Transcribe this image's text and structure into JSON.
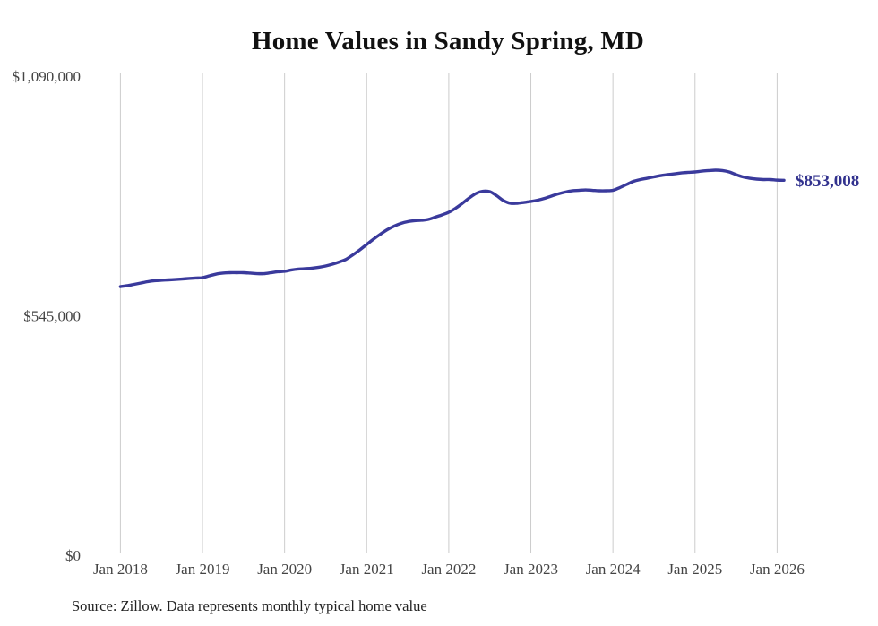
{
  "title": "Home Values in Sandy Spring, MD",
  "source_note": "Source: Zillow. Data represents monthly typical home value",
  "colors": {
    "line": "#3a3a9c",
    "end_label": "#32328e",
    "grid": "#cccccc",
    "axis_text": "#444444",
    "title_text": "#111111",
    "note_text": "#222222",
    "background": "#ffffff"
  },
  "chart_data": {
    "type": "line",
    "title": "Home Values in Sandy Spring, MD",
    "xlabel": "",
    "ylabel": "",
    "ylim": [
      0,
      1090000
    ],
    "grid": "vertical-only",
    "legend": "none",
    "line_color": "#3a3a9c",
    "latest_value": 853008,
    "latest_value_label": "$853,008",
    "y_ticks": [
      {
        "label": "$0",
        "value": 0
      },
      {
        "label": "$545,000",
        "value": 545000
      },
      {
        "label": "$1,090,000",
        "value": 1090000
      }
    ],
    "x_tick_labels": [
      "Jan 2018",
      "Jan 2019",
      "Jan 2020",
      "Jan 2021",
      "Jan 2022",
      "Jan 2023",
      "Jan 2024",
      "Jan 2025",
      "Jan 2026"
    ],
    "x_tick_month_index": [
      0,
      12,
      24,
      36,
      48,
      60,
      72,
      84,
      96
    ],
    "months": [
      "Jan 2018",
      "Feb 2018",
      "Mar 2018",
      "Apr 2018",
      "May 2018",
      "Jun 2018",
      "Jul 2018",
      "Aug 2018",
      "Sep 2018",
      "Oct 2018",
      "Nov 2018",
      "Dec 2018",
      "Jan 2019",
      "Feb 2019",
      "Mar 2019",
      "Apr 2019",
      "May 2019",
      "Jun 2019",
      "Jul 2019",
      "Aug 2019",
      "Sep 2019",
      "Oct 2019",
      "Nov 2019",
      "Dec 2019",
      "Jan 2020",
      "Feb 2020",
      "Mar 2020",
      "Apr 2020",
      "May 2020",
      "Jun 2020",
      "Jul 2020",
      "Aug 2020",
      "Sep 2020",
      "Oct 2020",
      "Nov 2020",
      "Dec 2020",
      "Jan 2021",
      "Feb 2021",
      "Mar 2021",
      "Apr 2021",
      "May 2021",
      "Jun 2021",
      "Jul 2021",
      "Aug 2021",
      "Sep 2021",
      "Oct 2021",
      "Nov 2021",
      "Dec 2021",
      "Jan 2022",
      "Feb 2022",
      "Mar 2022",
      "Apr 2022",
      "May 2022",
      "Jun 2022",
      "Jul 2022",
      "Aug 2022",
      "Sep 2022",
      "Oct 2022",
      "Nov 2022",
      "Dec 2022",
      "Jan 2023",
      "Feb 2023",
      "Mar 2023",
      "Apr 2023",
      "May 2023",
      "Jun 2023",
      "Jul 2023",
      "Aug 2023",
      "Sep 2023",
      "Oct 2023",
      "Nov 2023",
      "Dec 2023",
      "Jan 2024",
      "Feb 2024",
      "Mar 2024",
      "Apr 2024",
      "May 2024",
      "Jun 2024",
      "Jul 2024",
      "Aug 2024",
      "Sep 2024",
      "Oct 2024",
      "Nov 2024",
      "Dec 2024",
      "Jan 2025",
      "Feb 2025",
      "Mar 2025",
      "Apr 2025",
      "May 2025",
      "Jun 2025",
      "Jul 2025",
      "Aug 2025",
      "Sep 2025",
      "Oct 2025",
      "Nov 2025",
      "Dec 2025",
      "Jan 2026",
      "Feb 2026"
    ],
    "values": [
      611200,
      613300,
      616300,
      619400,
      622400,
      624500,
      625500,
      626500,
      627500,
      628500,
      629600,
      630600,
      631600,
      635700,
      639700,
      641800,
      642800,
      642800,
      642800,
      641800,
      640700,
      640700,
      642800,
      644900,
      645900,
      649000,
      651000,
      652000,
      653100,
      655100,
      658100,
      662200,
      667300,
      673400,
      683600,
      694800,
      707000,
      719200,
      730400,
      740600,
      748700,
      754900,
      758900,
      761000,
      762000,
      764000,
      769100,
      774200,
      780300,
      789500,
      800700,
      812900,
      823100,
      828200,
      827200,
      818000,
      806800,
      800700,
      800700,
      802700,
      804800,
      807800,
      811900,
      817000,
      822100,
      826100,
      829200,
      830200,
      831200,
      830200,
      829200,
      829200,
      830200,
      836300,
      843500,
      850600,
      854700,
      857700,
      860800,
      863800,
      865900,
      867900,
      869900,
      871000,
      872000,
      874000,
      875100,
      876100,
      875100,
      872000,
      865900,
      860800,
      857700,
      855700,
      854700,
      854700,
      853400,
      853008
    ]
  }
}
